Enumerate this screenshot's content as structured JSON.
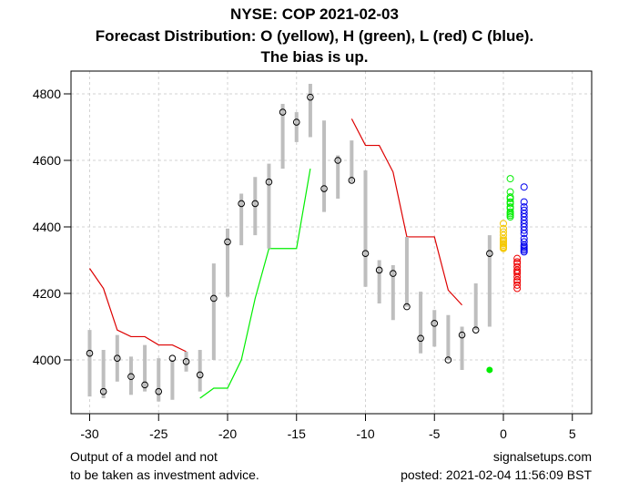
{
  "chart_data": {
    "type": "line",
    "title": "NYSE: COP 2021-02-03",
    "subtitle": "Forecast Distribution: O (yellow), H (green), L (red) C (blue).",
    "subtitle2": "The bias is up.",
    "xlabel": "",
    "ylabel": "",
    "xlim": [
      -31.4,
      6.4
    ],
    "ylim": [
      3850,
      4870
    ],
    "xticks": [
      -30,
      -25,
      -20,
      -15,
      -10,
      -5,
      0,
      5
    ],
    "yticks": [
      4000,
      4200,
      4400,
      4600,
      4800
    ],
    "grid": true,
    "colors": {
      "range_bar": "#bebebe",
      "close_marker": "#000000",
      "upper_line": "#dd0000",
      "lower_line": "#00ee00",
      "open_forecast": "#f5c800",
      "high_forecast": "#00ee00",
      "low_forecast": "#ee0000",
      "close_forecast": "#0000ee",
      "grid": "#d3d3d3"
    },
    "bars": [
      {
        "x": -30,
        "low": 3890,
        "high": 4090,
        "close": 4020
      },
      {
        "x": -29,
        "low": 3885,
        "high": 4030,
        "close": 3905
      },
      {
        "x": -28,
        "low": 3935,
        "high": 4075,
        "close": 4005
      },
      {
        "x": -27,
        "low": 3895,
        "high": 4010,
        "close": 3950
      },
      {
        "x": -26,
        "low": 3905,
        "high": 4045,
        "close": 3925
      },
      {
        "x": -25,
        "low": 3875,
        "high": 4005,
        "close": 3905
      },
      {
        "x": -24,
        "low": 3880,
        "high": 4000,
        "close": 4005
      },
      {
        "x": -23,
        "low": 3965,
        "high": 4025,
        "close": 3995
      },
      {
        "x": -22,
        "low": 3905,
        "high": 4030,
        "close": 3955
      },
      {
        "x": -21,
        "low": 4000,
        "high": 4290,
        "close": 4185
      },
      {
        "x": -20,
        "low": 4190,
        "high": 4395,
        "close": 4355
      },
      {
        "x": -19,
        "low": 4345,
        "high": 4500,
        "close": 4470
      },
      {
        "x": -18,
        "low": 4375,
        "high": 4550,
        "close": 4470
      },
      {
        "x": -17,
        "low": 4335,
        "high": 4590,
        "close": 4535
      },
      {
        "x": -16,
        "low": 4575,
        "high": 4770,
        "close": 4745
      },
      {
        "x": -15,
        "low": 4655,
        "high": 4745,
        "close": 4715
      },
      {
        "x": -14,
        "low": 4670,
        "high": 4830,
        "close": 4790
      },
      {
        "x": -13,
        "low": 4445,
        "high": 4720,
        "close": 4515
      },
      {
        "x": -12,
        "low": 4485,
        "high": 4615,
        "close": 4600
      },
      {
        "x": -11,
        "low": 4535,
        "high": 4660,
        "close": 4540
      },
      {
        "x": -10,
        "low": 4220,
        "high": 4570,
        "close": 4320
      },
      {
        "x": -9,
        "low": 4170,
        "high": 4300,
        "close": 4270
      },
      {
        "x": -8,
        "low": 4120,
        "high": 4285,
        "close": 4260
      },
      {
        "x": -7,
        "low": 4160,
        "high": 4370,
        "close": 4160
      },
      {
        "x": -6,
        "low": 4020,
        "high": 4205,
        "close": 4065
      },
      {
        "x": -5,
        "low": 4040,
        "high": 4150,
        "close": 4110
      },
      {
        "x": -4,
        "low": 4000,
        "high": 4135,
        "close": 4000
      },
      {
        "x": -3,
        "low": 3970,
        "high": 4100,
        "close": 4075
      },
      {
        "x": -2,
        "low": 4090,
        "high": 4230,
        "close": 4090
      },
      {
        "x": -1,
        "low": 4100,
        "high": 4375,
        "close": 4320
      }
    ],
    "upper_line": {
      "name": "upper band (red)",
      "x": [
        -30,
        -29,
        -28,
        -27,
        -26,
        -25,
        -24,
        -23,
        -22,
        -21,
        -20,
        -19,
        -18,
        -17,
        -16,
        -15,
        -14,
        -13,
        -12,
        -11,
        -10,
        -9,
        -8,
        -7,
        -6,
        -5,
        -4,
        -3
      ],
      "y": [
        4275,
        4215,
        4090,
        4070,
        4070,
        4045,
        4045,
        4025,
        null,
        null,
        null,
        null,
        null,
        null,
        null,
        null,
        null,
        null,
        null,
        4725,
        4645,
        4645,
        4565,
        4370,
        4370,
        4370,
        4210,
        4165
      ]
    },
    "lower_line": {
      "name": "lower band (green)",
      "x": [
        -22,
        -21,
        -20,
        -19,
        -18,
        -17,
        -16,
        -15,
        -14
      ],
      "y": [
        3885,
        3915,
        3915,
        4000,
        4185,
        4335,
        4335,
        4335,
        4575
      ]
    },
    "green_dot": {
      "x": -1,
      "y": 3970
    },
    "forecasts": [
      {
        "name": "O (yellow)",
        "x": 0,
        "values": [
          4410,
          4395,
          4385,
          4375,
          4365,
          4360,
          4355,
          4350,
          4345,
          4340,
          4338,
          4335
        ]
      },
      {
        "name": "H (green)",
        "x": 0.5,
        "values": [
          4545,
          4505,
          4490,
          4485,
          4475,
          4470,
          4460,
          4455,
          4445,
          4440,
          4435,
          4430
        ]
      },
      {
        "name": "L (red)",
        "x": 1,
        "values": [
          4305,
          4295,
          4290,
          4280,
          4270,
          4265,
          4260,
          4250,
          4240,
          4235,
          4225,
          4215
        ]
      },
      {
        "name": "C (blue)",
        "x": 1.5,
        "values": [
          4520,
          4475,
          4460,
          4450,
          4440,
          4430,
          4420,
          4410,
          4400,
          4390,
          4380,
          4365,
          4355,
          4345,
          4340,
          4335,
          4330,
          4325
        ]
      }
    ]
  },
  "footer": {
    "left_line1": "Output of a model and not",
    "left_line2": "to be taken as investment advice.",
    "right_line1": "signalsetups.com",
    "right_line2": "posted: 2021-02-04 11:56:09 BST"
  }
}
